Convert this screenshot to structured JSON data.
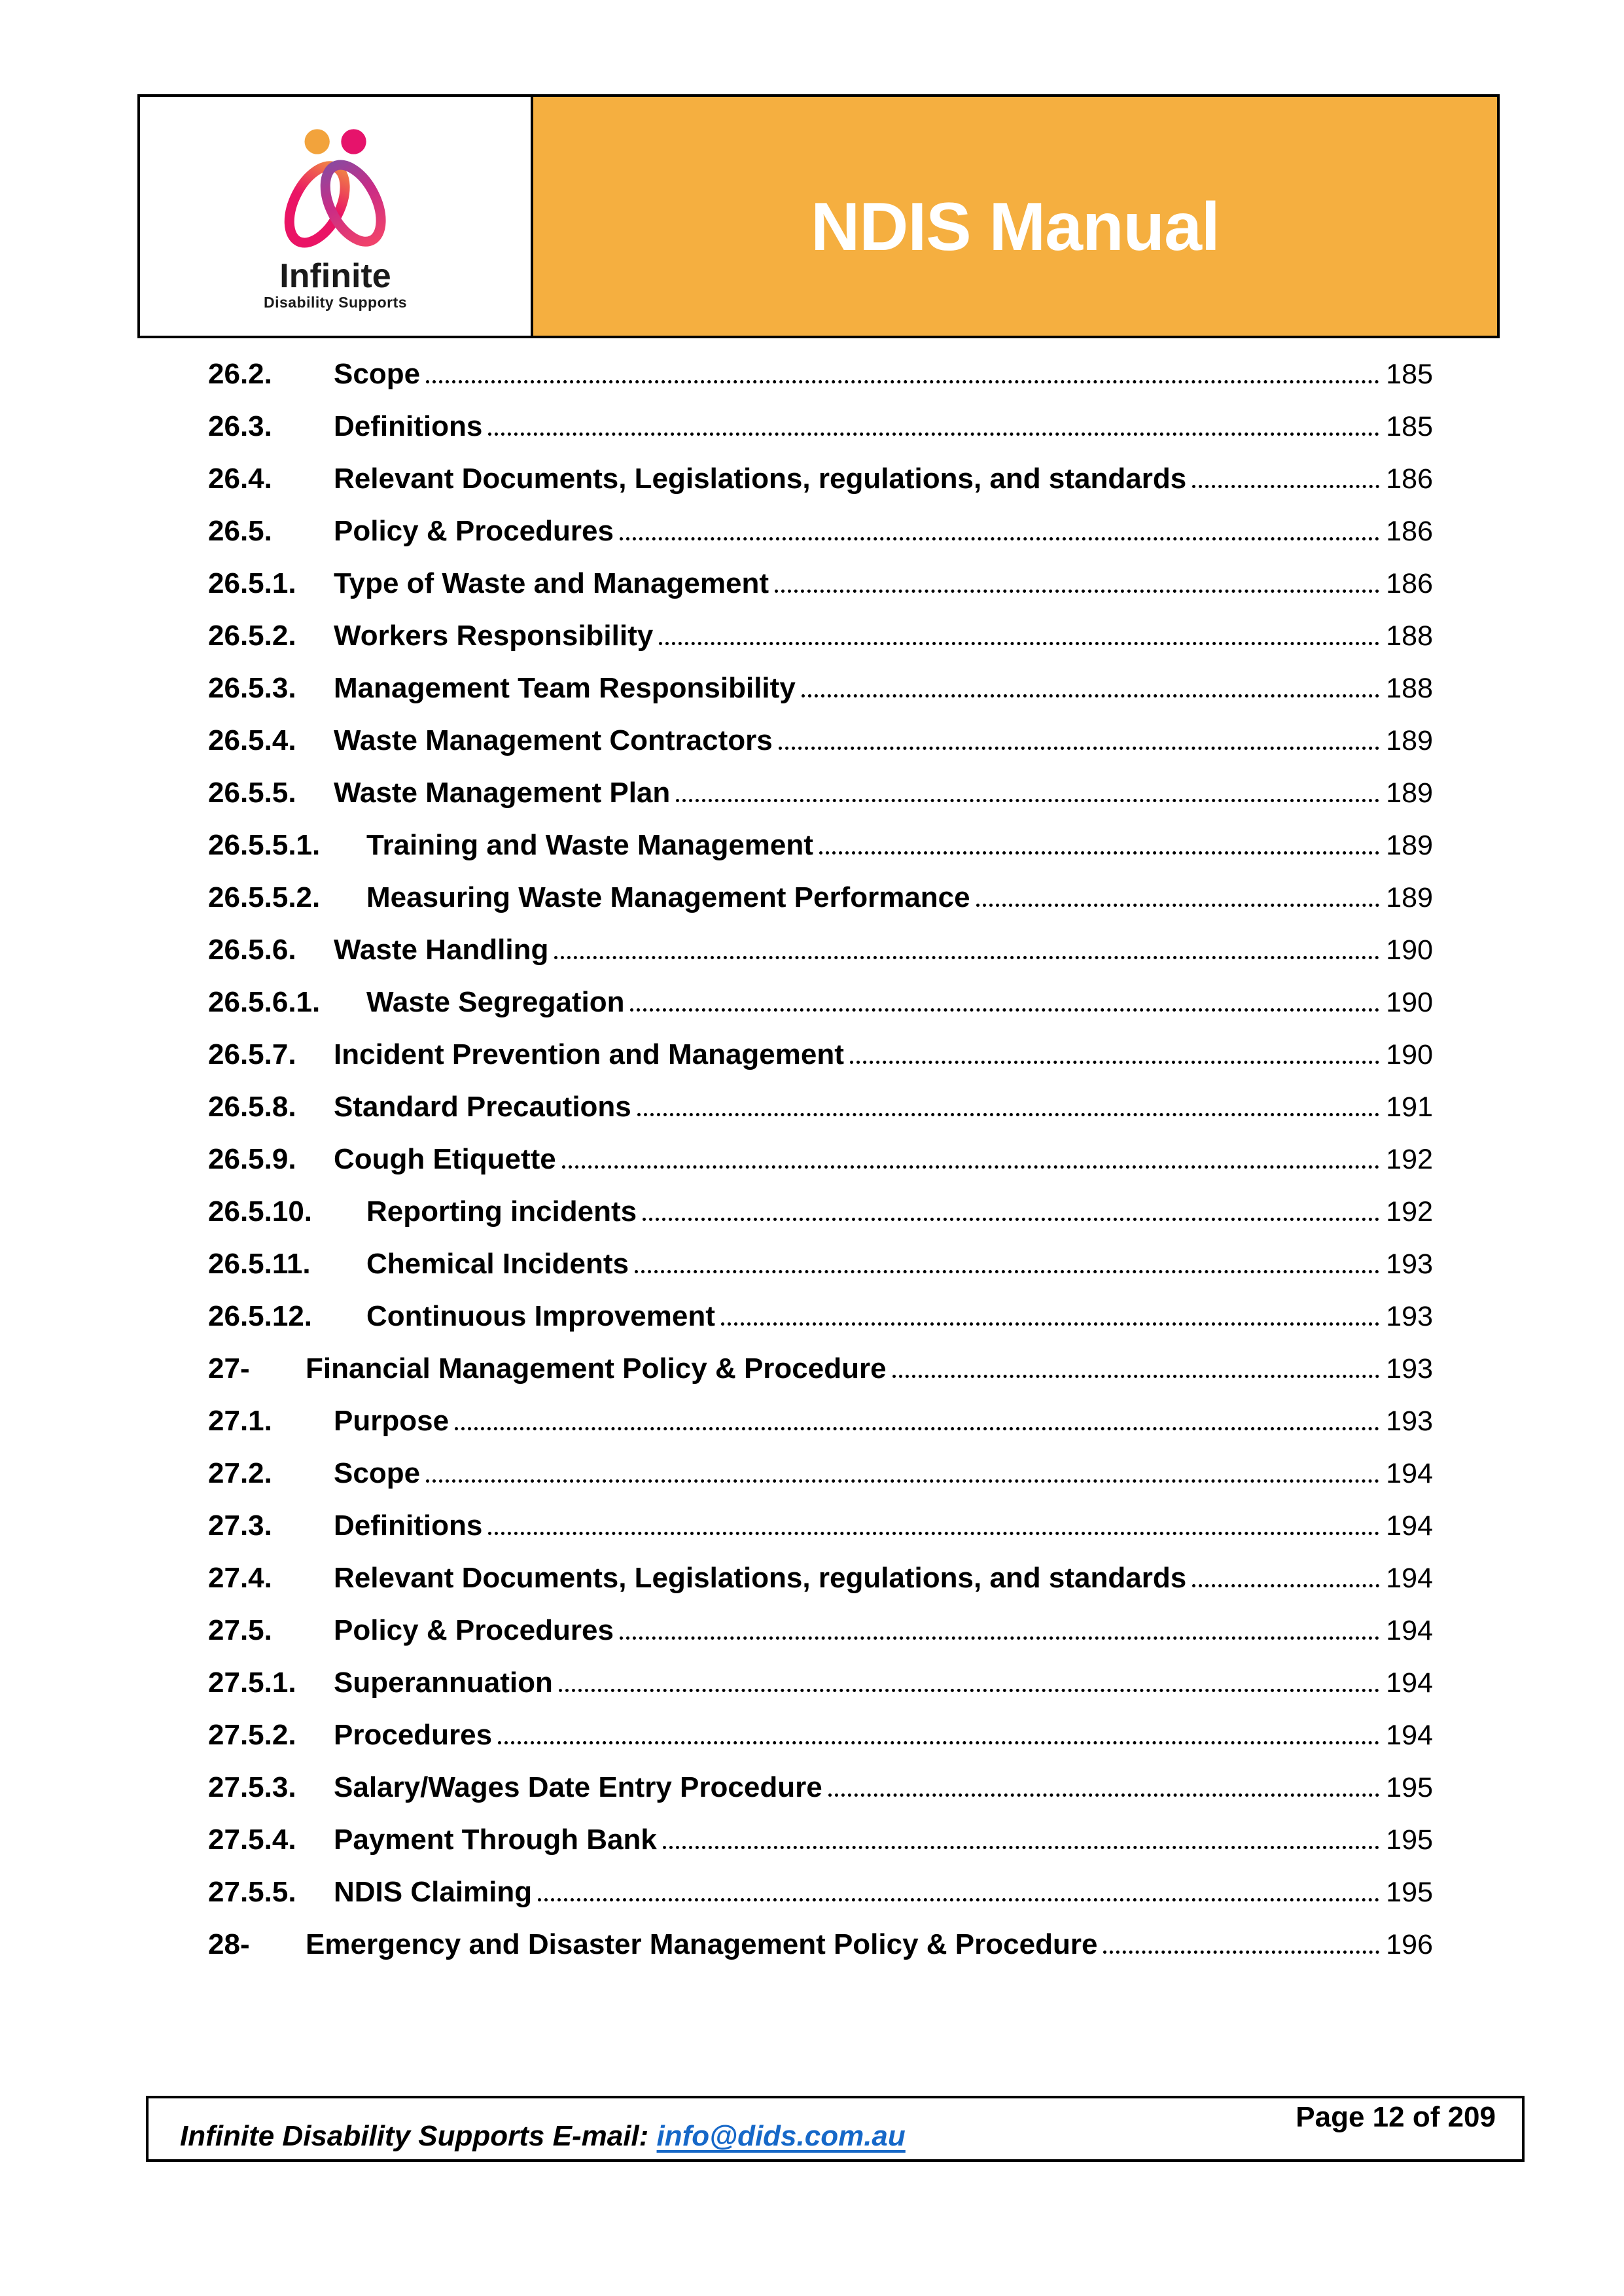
{
  "colors": {
    "banner_orange": "#F5AF40",
    "link_blue": "#1668C8",
    "logo_orange": "#F2A33C",
    "logo_pink": "#EA1465",
    "logo_purple": "#7E4FA5",
    "text_black": "#000000"
  },
  "header": {
    "banner_title": "NDIS Manual",
    "logo_name": "Infinite",
    "logo_tagline": "Disability Supports"
  },
  "toc": {
    "entries": [
      {
        "num": "26.2.",
        "title": "Scope",
        "page": "185",
        "level": 1
      },
      {
        "num": "26.3.",
        "title": "Definitions",
        "page": "185",
        "level": 1
      },
      {
        "num": "26.4.",
        "title": "Relevant Documents, Legislations, regulations, and standards",
        "page": "186",
        "level": 1
      },
      {
        "num": "26.5.",
        "title": "Policy & Procedures",
        "page": "186",
        "level": 1
      },
      {
        "num": "26.5.1.",
        "title": "Type of Waste and Management",
        "page": "186",
        "level": 1
      },
      {
        "num": "26.5.2.",
        "title": "Workers Responsibility",
        "page": "188",
        "level": 1
      },
      {
        "num": "26.5.3.",
        "title": "Management Team Responsibility",
        "page": "188",
        "level": 1
      },
      {
        "num": "26.5.4.",
        "title": "Waste Management Contractors",
        "page": "189",
        "level": 1
      },
      {
        "num": "26.5.5.",
        "title": "Waste Management Plan",
        "page": "189",
        "level": 1
      },
      {
        "num": "26.5.5.1.",
        "title": "Training and Waste Management",
        "page": "189",
        "level": 2
      },
      {
        "num": "26.5.5.2.",
        "title": "Measuring Waste Management Performance",
        "page": "189",
        "level": 2
      },
      {
        "num": "26.5.6.",
        "title": "Waste Handling",
        "page": "190",
        "level": 1
      },
      {
        "num": "26.5.6.1.",
        "title": "Waste Segregation",
        "page": "190",
        "level": 2
      },
      {
        "num": "26.5.7.",
        "title": "Incident Prevention and Management",
        "page": "190",
        "level": 1
      },
      {
        "num": "26.5.8.",
        "title": "Standard Precautions",
        "page": "191",
        "level": 1
      },
      {
        "num": "26.5.9.",
        "title": "Cough Etiquette",
        "page": "192",
        "level": 1
      },
      {
        "num": "26.5.10.",
        "title": "Reporting incidents",
        "page": "192",
        "level": 2
      },
      {
        "num": "26.5.11.",
        "title": "Chemical Incidents",
        "page": "193",
        "level": 2
      },
      {
        "num": "26.5.12.",
        "title": "Continuous Improvement",
        "page": "193",
        "level": 2
      },
      {
        "num": "27-",
        "title": "Financial Management Policy & Procedure",
        "page": "193",
        "level": 0
      },
      {
        "num": "27.1.",
        "title": "Purpose",
        "page": "193",
        "level": 1
      },
      {
        "num": "27.2.",
        "title": "Scope",
        "page": "194",
        "level": 1
      },
      {
        "num": "27.3.",
        "title": "Definitions",
        "page": "194",
        "level": 1
      },
      {
        "num": "27.4.",
        "title": "Relevant Documents, Legislations, regulations, and standards",
        "page": "194",
        "level": 1
      },
      {
        "num": "27.5.",
        "title": "Policy & Procedures",
        "page": "194",
        "level": 1
      },
      {
        "num": "27.5.1.",
        "title": "Superannuation",
        "page": "194",
        "level": 1
      },
      {
        "num": "27.5.2.",
        "title": "Procedures",
        "page": "194",
        "level": 1
      },
      {
        "num": "27.5.3.",
        "title": "Salary/Wages Date Entry Procedure",
        "page": "195",
        "level": 1
      },
      {
        "num": "27.5.4.",
        "title": "Payment Through Bank",
        "page": "195",
        "level": 1
      },
      {
        "num": "27.5.5.",
        "title": "NDIS Claiming",
        "page": "195",
        "level": 1
      },
      {
        "num": "28-",
        "title": "Emergency and Disaster Management Policy & Procedure",
        "page": "196",
        "level": 0
      }
    ]
  },
  "footer": {
    "email_label": "Infinite Disability Supports E-mail:",
    "email": "info@dids.com.au",
    "page_info": "Page 12 of 209"
  }
}
